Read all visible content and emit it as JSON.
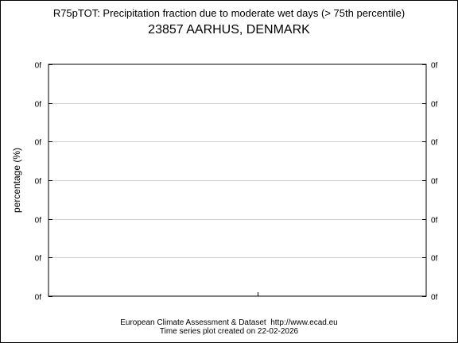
{
  "chart_data": {
    "type": "line",
    "title": "R75pTOT: Precipitation fraction due to moderate wet days (> 75th percentile)",
    "subtitle": "23857 AARHUS, DENMARK",
    "xlabel": "",
    "ylabel": "percentage (%)",
    "y_tick_labels": [
      "0f",
      "0f",
      "0f",
      "0f",
      "0f",
      "0f",
      "0f"
    ],
    "y_tick_labels_right": [
      "0f",
      "0f",
      "0f",
      "0f",
      "0f",
      "0f",
      "0f"
    ],
    "x_tick_labels": [],
    "grid": true,
    "series": []
  },
  "footer": {
    "line1": "European Climate Assessment & Dataset  http://www.ecad.eu",
    "line2": "Time series plot created on 22-02-2026"
  }
}
